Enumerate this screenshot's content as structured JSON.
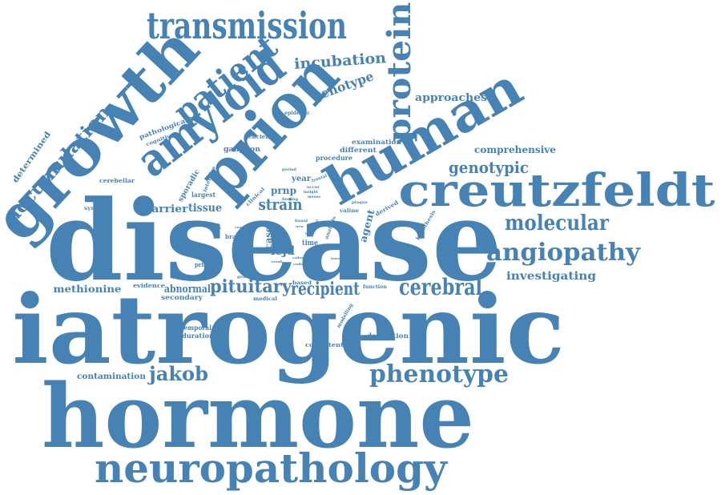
{
  "colors": {
    "word": "#4682b4",
    "background": "#ffffff"
  },
  "words": [
    "iatrogenic",
    "hormone",
    "disease",
    "neuropathology",
    "growth",
    "prion",
    "human",
    "creutzfeldt",
    "transmission",
    "amyloid",
    "protein",
    "patient",
    "phenotype",
    "angiopathy",
    "cerebral",
    "molecular",
    "accumulation",
    "jakob",
    "pituitary",
    "recipient",
    "strain",
    "incubation",
    "genotype",
    "genotypic",
    "approaches",
    "investigating",
    "comprehensive",
    "methionine",
    "contamination",
    "abnormal",
    "barrier",
    "tissue",
    "icjd",
    "prnp",
    "case",
    "agent",
    "determined",
    "examination",
    "deposition",
    "consistent",
    "temporal",
    "duration",
    "secondary",
    "evidence",
    "medical",
    "function",
    "based",
    "modelling",
    "derived",
    "valine",
    "plaque",
    "hypothesis",
    "lower",
    "codon",
    "cohort",
    "result",
    "time",
    "basal",
    "analysis",
    "insight",
    "mouse",
    "finding",
    "frontal",
    "occur",
    "genetic",
    "primary",
    "brain",
    "synaptic",
    "cerebellar",
    "symptom",
    "sporadic",
    "largest",
    "interplay",
    "clinical",
    "year",
    "period",
    "procedure",
    "different",
    "ganglion",
    "deficiency",
    "epidemic",
    "cognitive",
    "pathological",
    "link",
    "signal",
    "expert",
    "cause",
    "age",
    "test",
    "new"
  ]
}
